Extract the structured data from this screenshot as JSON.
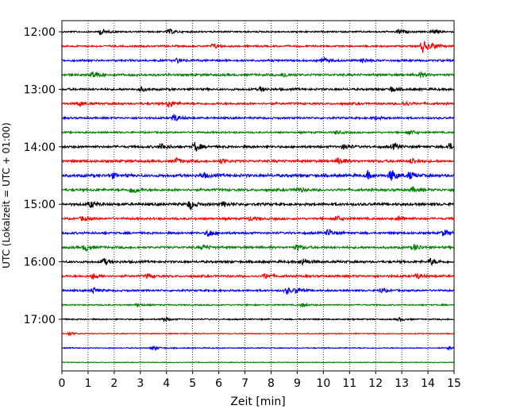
{
  "chart_data": {
    "type": "line",
    "subtype": "seismogram-helicorder",
    "title": "",
    "xlabel": "Zeit  [min]",
    "ylabel": "UTC (Lokalzeit = UTC + 01:00)",
    "xlim": [
      0,
      15
    ],
    "x_ticks": [
      0,
      1,
      2,
      3,
      4,
      5,
      6,
      7,
      8,
      9,
      10,
      11,
      12,
      13,
      14,
      15
    ],
    "x_tick_labels": [
      "0",
      "1",
      "2",
      "3",
      "4",
      "5",
      "6",
      "7",
      "8",
      "9",
      "10",
      "11",
      "12",
      "13",
      "14",
      "15"
    ],
    "y_tick_labels": [
      "12:00",
      "13:00",
      "14:00",
      "15:00",
      "16:00",
      "17:00"
    ],
    "vertical_grid": "dotted at every minute",
    "trace_interval_min": 15,
    "trace_colors": [
      "#000000",
      "#ff0000",
      "#0000ff",
      "#008000"
    ],
    "traces": [
      {
        "start": "12:00",
        "color": "#000000",
        "noise": 0.55,
        "events": [
          [
            1.5,
            2.2
          ],
          [
            4.1,
            2.0
          ],
          [
            12.9,
            2.0
          ],
          [
            14.2,
            1.6
          ]
        ]
      },
      {
        "start": "12:15",
        "color": "#ff0000",
        "noise": 0.6,
        "events": [
          [
            5.8,
            1.8
          ],
          [
            13.8,
            5.0
          ],
          [
            14.2,
            2.2
          ]
        ]
      },
      {
        "start": "12:30",
        "color": "#0000ff",
        "noise": 0.7,
        "events": [
          [
            4.4,
            1.6
          ],
          [
            10.0,
            2.0
          ],
          [
            11.5,
            1.4
          ]
        ]
      },
      {
        "start": "12:45",
        "color": "#008000",
        "noise": 0.8,
        "events": [
          [
            1.2,
            3.0
          ],
          [
            8.5,
            1.8
          ],
          [
            13.7,
            2.0
          ]
        ]
      },
      {
        "start": "13:00",
        "color": "#000000",
        "noise": 0.75,
        "events": [
          [
            3.0,
            1.6
          ],
          [
            7.6,
            1.6
          ],
          [
            12.6,
            2.0
          ]
        ]
      },
      {
        "start": "13:15",
        "color": "#ff0000",
        "noise": 0.75,
        "events": [
          [
            0.7,
            1.6
          ],
          [
            4.1,
            3.2
          ],
          [
            13.1,
            1.6
          ]
        ]
      },
      {
        "start": "13:30",
        "color": "#0000ff",
        "noise": 0.65,
        "events": [
          [
            4.3,
            3.0
          ],
          [
            12.0,
            1.4
          ]
        ]
      },
      {
        "start": "13:45",
        "color": "#008000",
        "noise": 0.6,
        "events": [
          [
            13.3,
            2.0
          ],
          [
            10.5,
            1.4
          ]
        ]
      },
      {
        "start": "14:00",
        "color": "#000000",
        "noise": 0.8,
        "events": [
          [
            3.8,
            2.6
          ],
          [
            5.1,
            4.0
          ],
          [
            10.8,
            2.0
          ],
          [
            12.7,
            2.2
          ],
          [
            14.8,
            2.6
          ]
        ]
      },
      {
        "start": "14:15",
        "color": "#ff0000",
        "noise": 0.85,
        "events": [
          [
            4.4,
            2.0
          ],
          [
            6.1,
            1.6
          ],
          [
            10.6,
            3.0
          ],
          [
            13.4,
            2.2
          ]
        ]
      },
      {
        "start": "14:30",
        "color": "#0000ff",
        "noise": 1.0,
        "events": [
          [
            1.9,
            2.0
          ],
          [
            5.4,
            2.0
          ],
          [
            11.7,
            2.6
          ],
          [
            12.6,
            4.6
          ],
          [
            13.3,
            2.6
          ]
        ]
      },
      {
        "start": "14:45",
        "color": "#008000",
        "noise": 0.85,
        "events": [
          [
            2.7,
            3.0
          ],
          [
            9.0,
            2.0
          ],
          [
            13.4,
            1.8
          ]
        ]
      },
      {
        "start": "15:00",
        "color": "#000000",
        "noise": 0.9,
        "events": [
          [
            1.1,
            2.4
          ],
          [
            4.9,
            3.6
          ],
          [
            6.2,
            1.8
          ]
        ]
      },
      {
        "start": "15:15",
        "color": "#ff0000",
        "noise": 0.75,
        "events": [
          [
            0.8,
            1.8
          ],
          [
            7.2,
            1.6
          ],
          [
            10.5,
            2.2
          ],
          [
            12.9,
            1.6
          ]
        ]
      },
      {
        "start": "15:30",
        "color": "#0000ff",
        "noise": 0.75,
        "events": [
          [
            5.6,
            3.2
          ],
          [
            10.2,
            2.8
          ],
          [
            14.6,
            2.4
          ]
        ]
      },
      {
        "start": "15:45",
        "color": "#008000",
        "noise": 0.8,
        "events": [
          [
            0.9,
            2.8
          ],
          [
            5.4,
            2.0
          ],
          [
            9.0,
            2.0
          ],
          [
            13.5,
            2.6
          ]
        ]
      },
      {
        "start": "16:00",
        "color": "#000000",
        "noise": 0.8,
        "events": [
          [
            1.6,
            2.6
          ],
          [
            9.2,
            2.4
          ],
          [
            14.1,
            2.6
          ]
        ]
      },
      {
        "start": "16:15",
        "color": "#ff0000",
        "noise": 0.75,
        "events": [
          [
            1.2,
            2.2
          ],
          [
            3.3,
            2.0
          ],
          [
            7.8,
            2.0
          ],
          [
            13.6,
            2.0
          ]
        ]
      },
      {
        "start": "16:30",
        "color": "#0000ff",
        "noise": 0.65,
        "events": [
          [
            1.2,
            2.2
          ],
          [
            8.6,
            2.6
          ],
          [
            9.0,
            2.2
          ],
          [
            12.2,
            1.8
          ]
        ]
      },
      {
        "start": "16:45",
        "color": "#008000",
        "noise": 0.45,
        "events": [
          [
            2.9,
            1.2
          ],
          [
            9.2,
            1.2
          ]
        ]
      },
      {
        "start": "17:00",
        "color": "#000000",
        "noise": 0.45,
        "events": [
          [
            3.9,
            1.8
          ],
          [
            12.9,
            1.2
          ]
        ]
      },
      {
        "start": "17:15",
        "color": "#ff0000",
        "noise": 0.35,
        "events": [
          [
            0.3,
            1.4
          ]
        ]
      },
      {
        "start": "17:30",
        "color": "#0000ff",
        "noise": 0.35,
        "events": [
          [
            3.5,
            1.8
          ],
          [
            14.8,
            1.2
          ]
        ]
      },
      {
        "start": "17:45",
        "color": "#008000",
        "noise": 0.25,
        "events": []
      }
    ]
  }
}
